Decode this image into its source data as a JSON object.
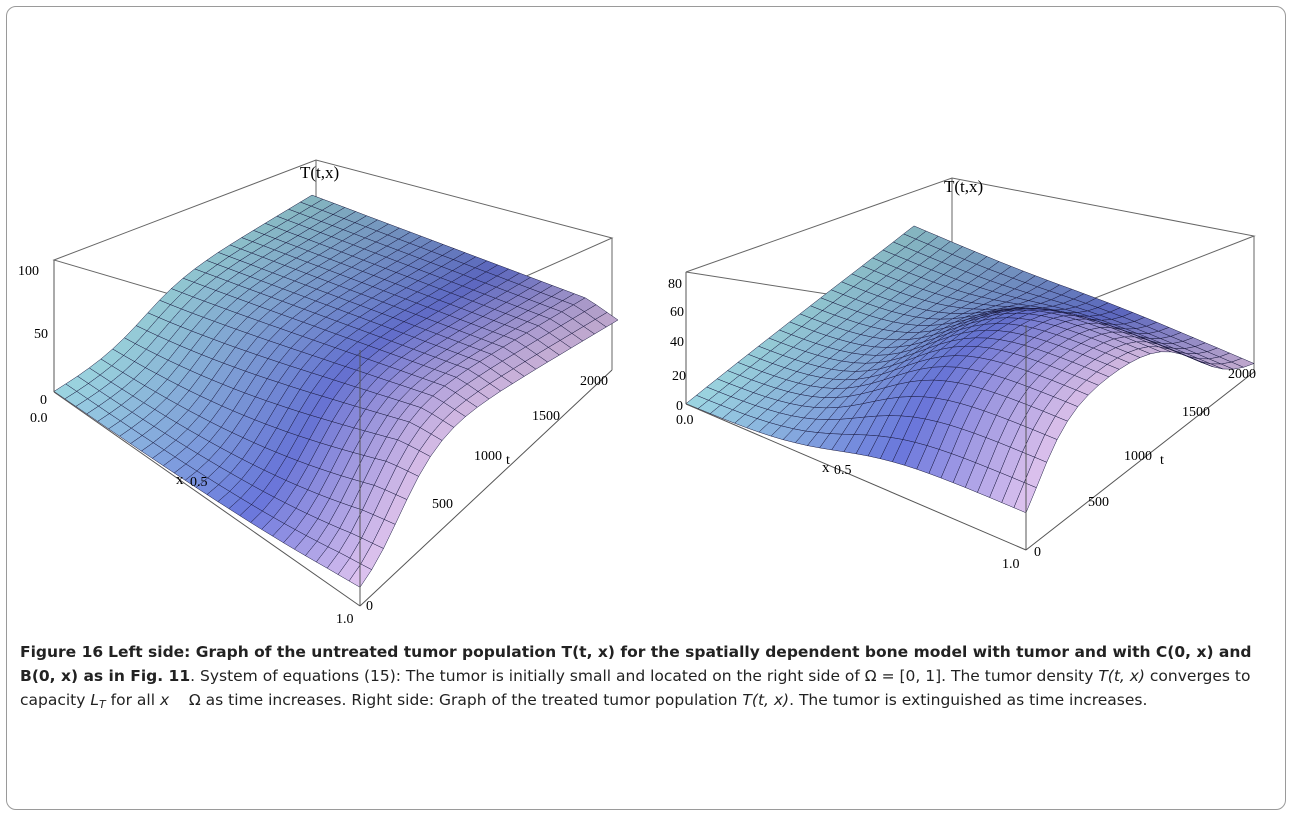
{
  "figure": {
    "panels": [
      {
        "name": "untreated",
        "z_axis_title": "T(t,x)",
        "z_ticks": [
          "100",
          "50",
          "0"
        ],
        "x_axis_label": "x",
        "x_ticks": [
          "0.0",
          "0.5",
          "1.0"
        ],
        "t_axis_label": "t",
        "t_ticks": [
          "0",
          "500",
          "1000",
          "1500",
          "2000"
        ]
      },
      {
        "name": "treated",
        "z_axis_title": "T(t,x)",
        "z_ticks": [
          "80",
          "60",
          "40",
          "20",
          "0"
        ],
        "x_axis_label": "x",
        "x_ticks": [
          "0.0",
          "0.5",
          "1.0"
        ],
        "t_axis_label": "t",
        "t_ticks": [
          "0",
          "500",
          "1000",
          "1500",
          "2000"
        ]
      }
    ],
    "surface_colors": {
      "low": "#9bd3e0",
      "mid": "#6a77dc",
      "high": "#e6c8f0"
    }
  },
  "caption": {
    "label": "Figure 16",
    "bold_title": "Left side: Graph of the untreated tumor population T(t, x) for the spatially dependent bone model with tumor and with C(0, x) and B(0, x) as in Fig. 11",
    "text_1": ". System of equations (15): The tumor is initially small and located on the right side of Ω = [0, 1]. The tumor density ",
    "var_T": "T",
    "var_tx": "(t, x)",
    "text_2": " converges to capacity ",
    "var_L": "L",
    "sub_T": "T",
    "text_3": " for all ",
    "var_x": "x",
    "text_4": "    Ω as time increases. Right side: Graph of the treated tumor population ",
    "var_T2": "T",
    "var_tx2": "(t, x)",
    "text_5": ". The tumor is extinguished as time increases."
  }
}
